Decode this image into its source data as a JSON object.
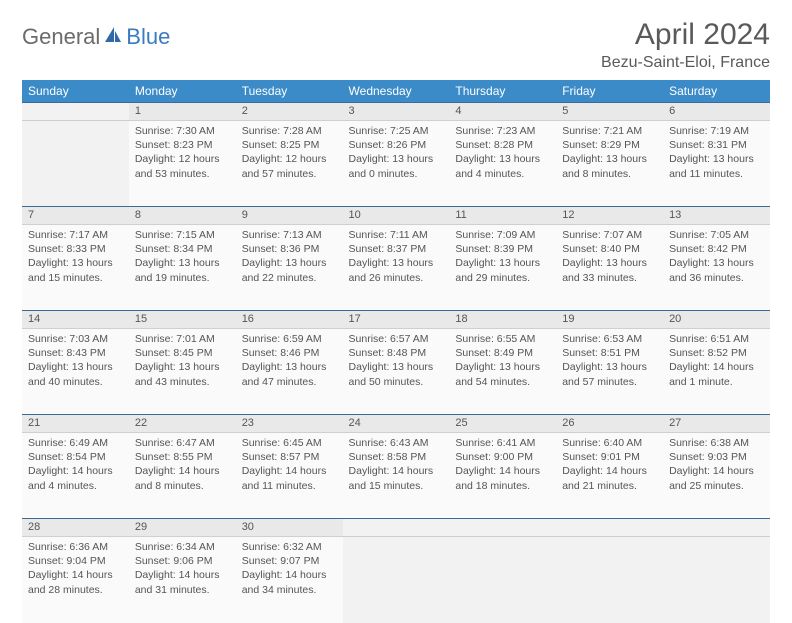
{
  "logo": {
    "part1": "General",
    "part2": "Blue"
  },
  "title": "April 2024",
  "location": "Bezu-Saint-Eloi, France",
  "colors": {
    "header_bg": "#3b8bc9",
    "header_text": "#ffffff",
    "daynum_bg": "#e9e9e9",
    "daynum_border_top": "#3a6a9a",
    "cell_bg": "#fafafa",
    "empty_bg": "#f2f2f2",
    "text": "#555555",
    "logo_gray": "#6b6b6b",
    "logo_blue": "#3b7bbf"
  },
  "typography": {
    "title_fontsize": 30,
    "location_fontsize": 16,
    "dayheader_fontsize": 12,
    "daynum_fontsize": 11,
    "cell_fontsize": 10.5
  },
  "day_headers": [
    "Sunday",
    "Monday",
    "Tuesday",
    "Wednesday",
    "Thursday",
    "Friday",
    "Saturday"
  ],
  "weeks": [
    [
      null,
      {
        "n": "1",
        "sr": "7:30 AM",
        "ss": "8:23 PM",
        "dl1": "Daylight: 12 hours",
        "dl2": "and 53 minutes."
      },
      {
        "n": "2",
        "sr": "7:28 AM",
        "ss": "8:25 PM",
        "dl1": "Daylight: 12 hours",
        "dl2": "and 57 minutes."
      },
      {
        "n": "3",
        "sr": "7:25 AM",
        "ss": "8:26 PM",
        "dl1": "Daylight: 13 hours",
        "dl2": "and 0 minutes."
      },
      {
        "n": "4",
        "sr": "7:23 AM",
        "ss": "8:28 PM",
        "dl1": "Daylight: 13 hours",
        "dl2": "and 4 minutes."
      },
      {
        "n": "5",
        "sr": "7:21 AM",
        "ss": "8:29 PM",
        "dl1": "Daylight: 13 hours",
        "dl2": "and 8 minutes."
      },
      {
        "n": "6",
        "sr": "7:19 AM",
        "ss": "8:31 PM",
        "dl1": "Daylight: 13 hours",
        "dl2": "and 11 minutes."
      }
    ],
    [
      {
        "n": "7",
        "sr": "7:17 AM",
        "ss": "8:33 PM",
        "dl1": "Daylight: 13 hours",
        "dl2": "and 15 minutes."
      },
      {
        "n": "8",
        "sr": "7:15 AM",
        "ss": "8:34 PM",
        "dl1": "Daylight: 13 hours",
        "dl2": "and 19 minutes."
      },
      {
        "n": "9",
        "sr": "7:13 AM",
        "ss": "8:36 PM",
        "dl1": "Daylight: 13 hours",
        "dl2": "and 22 minutes."
      },
      {
        "n": "10",
        "sr": "7:11 AM",
        "ss": "8:37 PM",
        "dl1": "Daylight: 13 hours",
        "dl2": "and 26 minutes."
      },
      {
        "n": "11",
        "sr": "7:09 AM",
        "ss": "8:39 PM",
        "dl1": "Daylight: 13 hours",
        "dl2": "and 29 minutes."
      },
      {
        "n": "12",
        "sr": "7:07 AM",
        "ss": "8:40 PM",
        "dl1": "Daylight: 13 hours",
        "dl2": "and 33 minutes."
      },
      {
        "n": "13",
        "sr": "7:05 AM",
        "ss": "8:42 PM",
        "dl1": "Daylight: 13 hours",
        "dl2": "and 36 minutes."
      }
    ],
    [
      {
        "n": "14",
        "sr": "7:03 AM",
        "ss": "8:43 PM",
        "dl1": "Daylight: 13 hours",
        "dl2": "and 40 minutes."
      },
      {
        "n": "15",
        "sr": "7:01 AM",
        "ss": "8:45 PM",
        "dl1": "Daylight: 13 hours",
        "dl2": "and 43 minutes."
      },
      {
        "n": "16",
        "sr": "6:59 AM",
        "ss": "8:46 PM",
        "dl1": "Daylight: 13 hours",
        "dl2": "and 47 minutes."
      },
      {
        "n": "17",
        "sr": "6:57 AM",
        "ss": "8:48 PM",
        "dl1": "Daylight: 13 hours",
        "dl2": "and 50 minutes."
      },
      {
        "n": "18",
        "sr": "6:55 AM",
        "ss": "8:49 PM",
        "dl1": "Daylight: 13 hours",
        "dl2": "and 54 minutes."
      },
      {
        "n": "19",
        "sr": "6:53 AM",
        "ss": "8:51 PM",
        "dl1": "Daylight: 13 hours",
        "dl2": "and 57 minutes."
      },
      {
        "n": "20",
        "sr": "6:51 AM",
        "ss": "8:52 PM",
        "dl1": "Daylight: 14 hours",
        "dl2": "and 1 minute."
      }
    ],
    [
      {
        "n": "21",
        "sr": "6:49 AM",
        "ss": "8:54 PM",
        "dl1": "Daylight: 14 hours",
        "dl2": "and 4 minutes."
      },
      {
        "n": "22",
        "sr": "6:47 AM",
        "ss": "8:55 PM",
        "dl1": "Daylight: 14 hours",
        "dl2": "and 8 minutes."
      },
      {
        "n": "23",
        "sr": "6:45 AM",
        "ss": "8:57 PM",
        "dl1": "Daylight: 14 hours",
        "dl2": "and 11 minutes."
      },
      {
        "n": "24",
        "sr": "6:43 AM",
        "ss": "8:58 PM",
        "dl1": "Daylight: 14 hours",
        "dl2": "and 15 minutes."
      },
      {
        "n": "25",
        "sr": "6:41 AM",
        "ss": "9:00 PM",
        "dl1": "Daylight: 14 hours",
        "dl2": "and 18 minutes."
      },
      {
        "n": "26",
        "sr": "6:40 AM",
        "ss": "9:01 PM",
        "dl1": "Daylight: 14 hours",
        "dl2": "and 21 minutes."
      },
      {
        "n": "27",
        "sr": "6:38 AM",
        "ss": "9:03 PM",
        "dl1": "Daylight: 14 hours",
        "dl2": "and 25 minutes."
      }
    ],
    [
      {
        "n": "28",
        "sr": "6:36 AM",
        "ss": "9:04 PM",
        "dl1": "Daylight: 14 hours",
        "dl2": "and 28 minutes."
      },
      {
        "n": "29",
        "sr": "6:34 AM",
        "ss": "9:06 PM",
        "dl1": "Daylight: 14 hours",
        "dl2": "and 31 minutes."
      },
      {
        "n": "30",
        "sr": "6:32 AM",
        "ss": "9:07 PM",
        "dl1": "Daylight: 14 hours",
        "dl2": "and 34 minutes."
      },
      null,
      null,
      null,
      null
    ]
  ]
}
